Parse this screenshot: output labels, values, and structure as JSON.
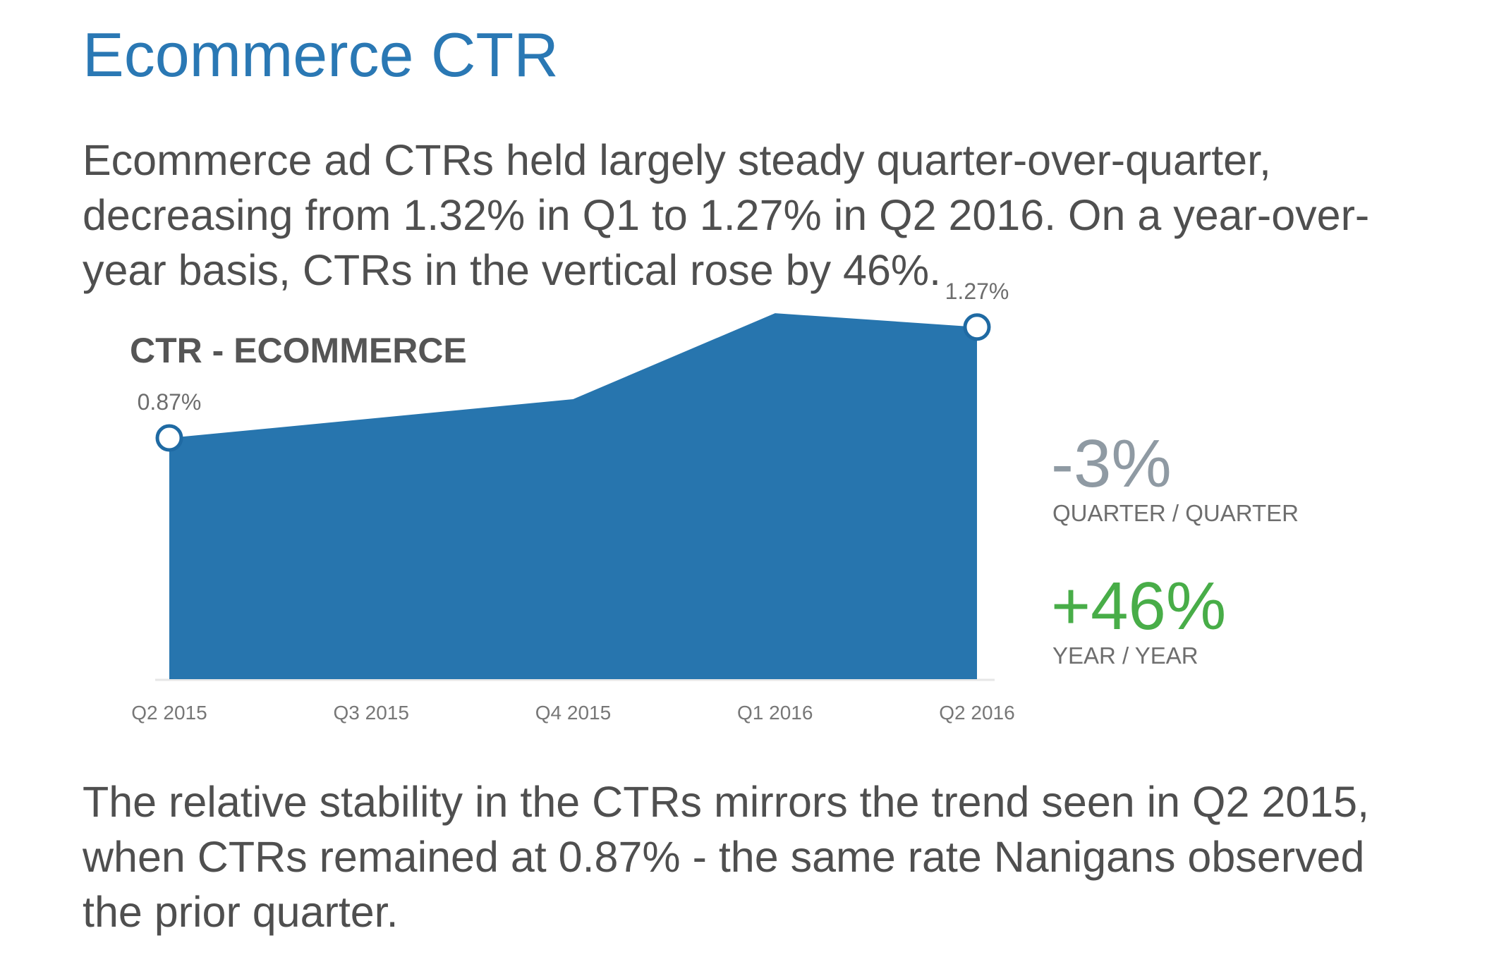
{
  "title": "Ecommerce CTR",
  "intro_text": "Ecommerce ad CTRs held largely steady quarter-over-quarter, decreasing from 1.32% in Q1 to 1.27% in Q2 2016. On a year-over-year basis, CTRs in the vertical rose by 46%.",
  "closing_text": "The relative stability in the CTRs mirrors the trend seen in Q2 2015, when CTRs remained at 0.87% - the same rate Nanigans observed the prior quarter.",
  "chart_data": {
    "type": "area",
    "title": "CTR - ECOMMERCE",
    "categories": [
      "Q2 2015",
      "Q3 2015",
      "Q4 2015",
      "Q1 2016",
      "Q2 2016"
    ],
    "values": [
      0.87,
      0.94,
      1.01,
      1.32,
      1.27
    ],
    "unit": "%",
    "point_labels": [
      {
        "index": 0,
        "text": "0.87%"
      },
      {
        "index": 4,
        "text": "1.27%"
      }
    ],
    "marked_points": [
      0,
      4
    ],
    "ylim": [
      0,
      1.45
    ],
    "grid": false,
    "legend": "none",
    "colors": {
      "fill": "#2775ae",
      "marker_fill": "#ffffff",
      "marker_stroke": "#2775ae"
    }
  },
  "stats": [
    {
      "value": "-3%",
      "label": "QUARTER / QUARTER",
      "color": "#8f9aa3"
    },
    {
      "value": "+46%",
      "label": "YEAR / YEAR",
      "color": "#48ad48"
    }
  ]
}
